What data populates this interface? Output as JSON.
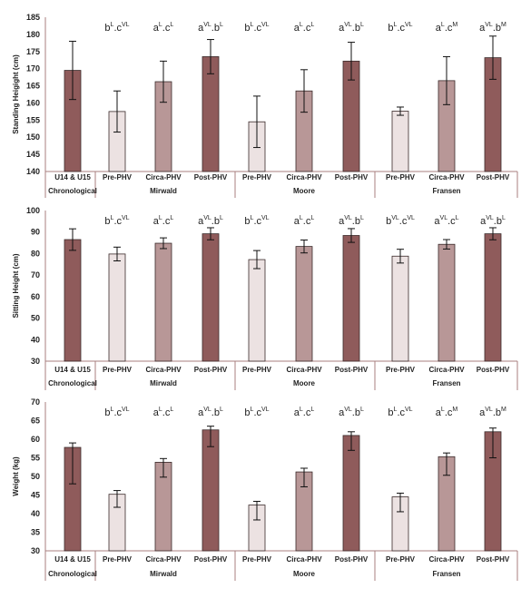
{
  "chart_data": [
    {
      "type": "bar",
      "ylabel": "Standing Heigight (cm)",
      "ylim": [
        140,
        185
      ],
      "yticks": [
        140,
        145,
        150,
        155,
        160,
        165,
        170,
        175,
        180,
        185
      ],
      "categories": [
        "U14 & U15",
        "Pre-PHV",
        "Circa-PHV",
        "Post-PHV",
        "Pre-PHV",
        "Circa-PHV",
        "Post-PHV",
        "Pre-PHV",
        "Circa-PHV",
        "Post-PHV"
      ],
      "groups": [
        "Chronological",
        "Mirwald",
        "Moore",
        "Fransen"
      ],
      "values": [
        169.5,
        157.5,
        166.2,
        173.5,
        154.5,
        163.5,
        172.2,
        157.6,
        166.5,
        173.2
      ],
      "errors": [
        8.5,
        6.0,
        6.0,
        5.0,
        7.5,
        6.2,
        5.5,
        1.2,
        7.0,
        6.3
      ],
      "annotations": [
        [
          "b",
          "L",
          "c",
          "VL"
        ],
        [
          "a",
          "L",
          "c",
          "L"
        ],
        [
          "a",
          "VL",
          "b",
          "L"
        ],
        [
          "b",
          "L",
          "c",
          "VL"
        ],
        [
          "a",
          "L",
          "c",
          "L"
        ],
        [
          "a",
          "VL",
          "b",
          "L"
        ],
        [
          "b",
          "L",
          "c",
          "VL"
        ],
        [
          "a",
          "L",
          "c",
          "M"
        ],
        [
          "a",
          "VL",
          "b",
          "M"
        ]
      ]
    },
    {
      "type": "bar",
      "ylabel": "Sitting Height (cm)",
      "ylim": [
        30,
        100
      ],
      "yticks": [
        30,
        40,
        50,
        60,
        70,
        80,
        90,
        100
      ],
      "categories": [
        "U14 & U15",
        "Pre-PHV",
        "Circa-PHV",
        "Post-PHV",
        "Pre-PHV",
        "Circa-PHV",
        "Post-PHV",
        "Pre-PHV",
        "Circa-PHV",
        "Post-PHV"
      ],
      "groups": [
        "Chronological",
        "Mirwald",
        "Moore",
        "Fransen"
      ],
      "values": [
        86.5,
        79.8,
        84.8,
        89.2,
        77.2,
        83.3,
        88.4,
        78.8,
        84.3,
        89.2
      ],
      "errors": [
        5.0,
        3.2,
        2.5,
        2.8,
        4.2,
        3.0,
        3.2,
        3.2,
        2.2,
        2.8
      ],
      "annotations": [
        [
          "b",
          "L",
          "c",
          "VL"
        ],
        [
          "a",
          "L",
          "c",
          "L"
        ],
        [
          "a",
          "VL",
          "b",
          "L"
        ],
        [
          "b",
          "L",
          "c",
          "VL"
        ],
        [
          "a",
          "L",
          "c",
          "L"
        ],
        [
          "a",
          "VL",
          "b",
          "L"
        ],
        [
          "b",
          "VL",
          "c",
          "VL"
        ],
        [
          "a",
          "VL",
          "c",
          "L"
        ],
        [
          "a",
          "VL",
          "b",
          "L"
        ]
      ]
    },
    {
      "type": "bar",
      "ylabel": "Weight (kg)",
      "ylim": [
        30,
        70
      ],
      "yticks": [
        30,
        35,
        40,
        45,
        50,
        55,
        60,
        65,
        70
      ],
      "categories": [
        "U14 & U15",
        "Pre-PHV",
        "Circa-PHV",
        "Post-PHV",
        "Pre-PHV",
        "Circa-PHV",
        "Post-PHV",
        "Pre-PHV",
        "Circa-PHV",
        "Post-PHV"
      ],
      "groups": [
        "Chronological",
        "Mirwald",
        "Moore",
        "Fransen"
      ],
      "values": [
        57.8,
        45.2,
        53.8,
        62.5,
        42.3,
        51.2,
        61.0,
        44.5,
        55.3,
        62.0
      ],
      "errors": [
        1.2,
        1.0,
        1.0,
        1.0,
        1.0,
        1.0,
        1.0,
        1.0,
        1.0,
        1.0
      ],
      "errors_low": [
        9.8,
        3.5,
        4.0,
        4.5,
        4.0,
        4.0,
        4.0,
        4.0,
        5.0,
        7.0
      ],
      "annotations": [
        [
          "b",
          "L",
          "c",
          "VL"
        ],
        [
          "a",
          "L",
          "c",
          "L"
        ],
        [
          "a",
          "VL",
          "b",
          "L"
        ],
        [
          "b",
          "L",
          "c",
          "VL"
        ],
        [
          "a",
          "L",
          "c",
          "L"
        ],
        [
          "a",
          "VL",
          "b",
          "L"
        ],
        [
          "b",
          "L",
          "c",
          "VL"
        ],
        [
          "a",
          "L",
          "c",
          "M"
        ],
        [
          "a",
          "VL",
          "b",
          "M"
        ]
      ]
    }
  ],
  "colors": {
    "chronological": "#8f5b5b",
    "pre": "#ece2e2",
    "circa": "#b89797",
    "post": "#8f5b5b",
    "axis": "#a97f7f",
    "text": "#222222"
  }
}
